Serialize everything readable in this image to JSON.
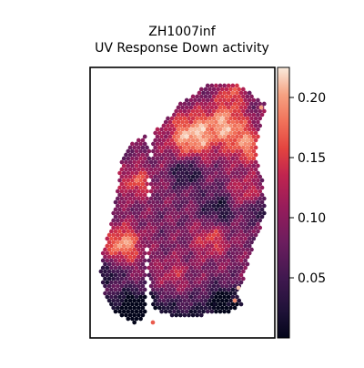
{
  "chart_data": {
    "type": "heatmap",
    "title_line1": "ZH1007inf",
    "title_line2": "UV Response Down activity",
    "xlabel": "",
    "ylabel": "",
    "colormap": "rocket",
    "colorbar": {
      "vmin": 0.0,
      "vmax": 0.225,
      "ticks": [
        0.05,
        0.1,
        0.15,
        0.2
      ],
      "tick_labels": [
        "0.05",
        "0.10",
        "0.15",
        "0.20"
      ]
    },
    "grid": false,
    "regions_activity": [
      {
        "region": "upper-right tissue",
        "approx_value": 0.17
      },
      {
        "region": "center tissue",
        "approx_value": 0.09
      },
      {
        "region": "left strip",
        "approx_value": 0.12
      },
      {
        "region": "bottom edge",
        "approx_value": 0.03
      }
    ]
  }
}
